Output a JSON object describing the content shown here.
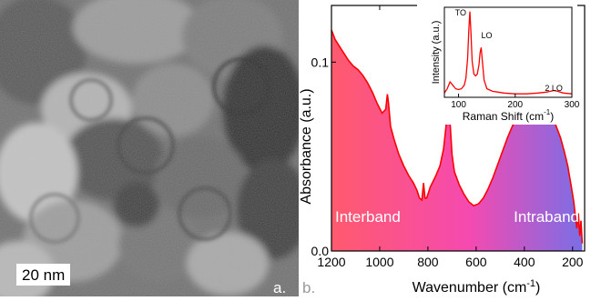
{
  "panel_a": {
    "scale_bar": "20 nm",
    "label": "a."
  },
  "panel_b": {
    "label": "b."
  },
  "chart_data": [
    {
      "type": "area",
      "xlabel": "Wavenumber (cm-1)",
      "ylabel": "Absorbance (a.u.)",
      "xlim": [
        1200,
        150
      ],
      "ylim": [
        0,
        0.13
      ],
      "x_reversed": true,
      "xticks": [
        1200,
        1000,
        800,
        600,
        400,
        200
      ],
      "xtick_labels": [
        "1200",
        "1000",
        "800",
        "600",
        "400",
        "200"
      ],
      "yticks": [
        0.0,
        0.1
      ],
      "ytick_labels": [
        "0.0",
        "0.1"
      ],
      "grid": false,
      "line_color": "#ff0000",
      "fill_gradient": [
        "#ff5a6e",
        "#f54ab0",
        "#7a6ee6"
      ],
      "annotations": [
        "Interband",
        "Intraband"
      ],
      "x": [
        1200,
        1185,
        1170,
        1150,
        1130,
        1110,
        1090,
        1070,
        1050,
        1030,
        1010,
        990,
        975,
        968,
        963,
        955,
        940,
        920,
        900,
        880,
        860,
        845,
        835,
        825,
        818,
        812,
        805,
        790,
        770,
        750,
        735,
        725,
        718,
        713,
        707,
        700,
        690,
        670,
        650,
        630,
        610,
        590,
        570,
        550,
        530,
        510,
        490,
        470,
        450,
        430,
        410,
        390,
        370,
        350,
        330,
        310,
        295,
        280,
        265,
        250,
        235,
        220,
        205,
        195,
        188,
        182,
        176,
        170,
        165,
        160
      ],
      "y": [
        0.117,
        0.112,
        0.109,
        0.105,
        0.101,
        0.098,
        0.096,
        0.093,
        0.089,
        0.084,
        0.078,
        0.073,
        0.075,
        0.083,
        0.078,
        0.066,
        0.059,
        0.051,
        0.045,
        0.04,
        0.036,
        0.032,
        0.028,
        0.027,
        0.036,
        0.028,
        0.028,
        0.034,
        0.039,
        0.045,
        0.054,
        0.066,
        0.08,
        0.078,
        0.066,
        0.051,
        0.042,
        0.035,
        0.03,
        0.026,
        0.024,
        0.025,
        0.028,
        0.033,
        0.039,
        0.046,
        0.053,
        0.06,
        0.066,
        0.071,
        0.075,
        0.077,
        0.079,
        0.08,
        0.079,
        0.077,
        0.074,
        0.07,
        0.065,
        0.06,
        0.053,
        0.045,
        0.034,
        0.026,
        0.018,
        0.012,
        0.02,
        0.008,
        0.016,
        0.004
      ]
    },
    {
      "type": "line",
      "xlabel": "Raman Shift (cm-1)",
      "ylabel": "Intensity (a.u.)",
      "xlim": [
        75,
        300
      ],
      "ylim": [
        0,
        1.05
      ],
      "xticks": [
        100,
        200,
        300
      ],
      "xtick_labels": [
        "100",
        "200",
        "300"
      ],
      "line_color": "#ff0000",
      "annotations": [
        {
          "text": "TO",
          "x": 120
        },
        {
          "text": "LO",
          "x": 140
        },
        {
          "text": "2 LO",
          "x": 268
        }
      ],
      "x": [
        75,
        80,
        85,
        90,
        95,
        100,
        105,
        110,
        113,
        116,
        118,
        120,
        122,
        124,
        127,
        130,
        133,
        136,
        138,
        140,
        142,
        145,
        150,
        160,
        170,
        180,
        200,
        220,
        240,
        255,
        262,
        268,
        275,
        285,
        300
      ],
      "y": [
        0.05,
        0.1,
        0.18,
        0.14,
        0.1,
        0.09,
        0.1,
        0.14,
        0.22,
        0.45,
        0.78,
        1.0,
        0.75,
        0.42,
        0.27,
        0.25,
        0.27,
        0.38,
        0.52,
        0.58,
        0.42,
        0.2,
        0.1,
        0.07,
        0.06,
        0.05,
        0.04,
        0.04,
        0.05,
        0.06,
        0.07,
        0.08,
        0.07,
        0.05,
        0.04
      ]
    }
  ]
}
